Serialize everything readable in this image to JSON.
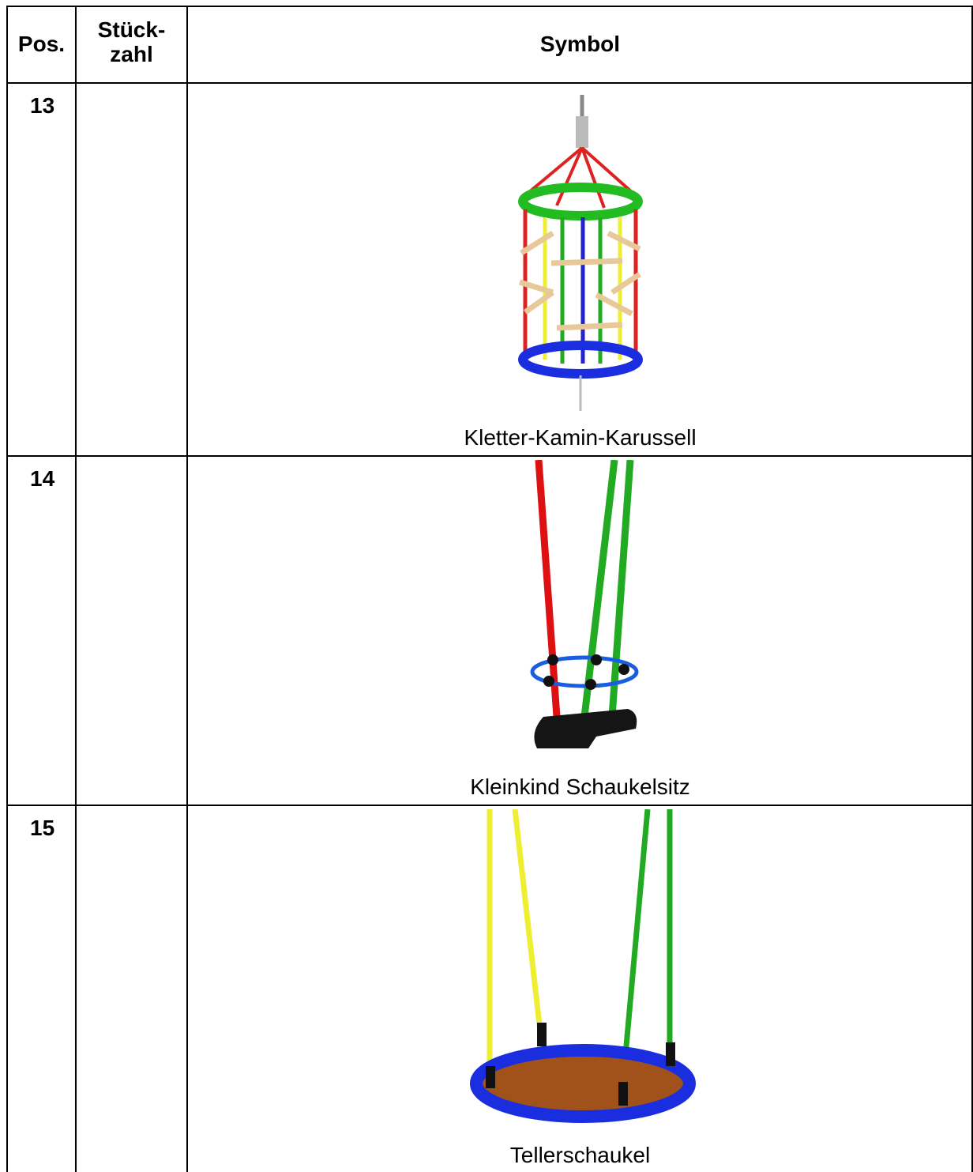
{
  "header": {
    "pos": "Pos.",
    "quantity_lines": [
      "Stück-",
      "zahl"
    ],
    "symbol": "Symbol"
  },
  "rows": [
    {
      "pos": "13",
      "caption": "Kletter-Kamin-Karussell"
    },
    {
      "pos": "14",
      "caption": "Kleinkind Schaukelsitz"
    },
    {
      "pos": "15",
      "caption": "Tellerschaukel"
    }
  ]
}
